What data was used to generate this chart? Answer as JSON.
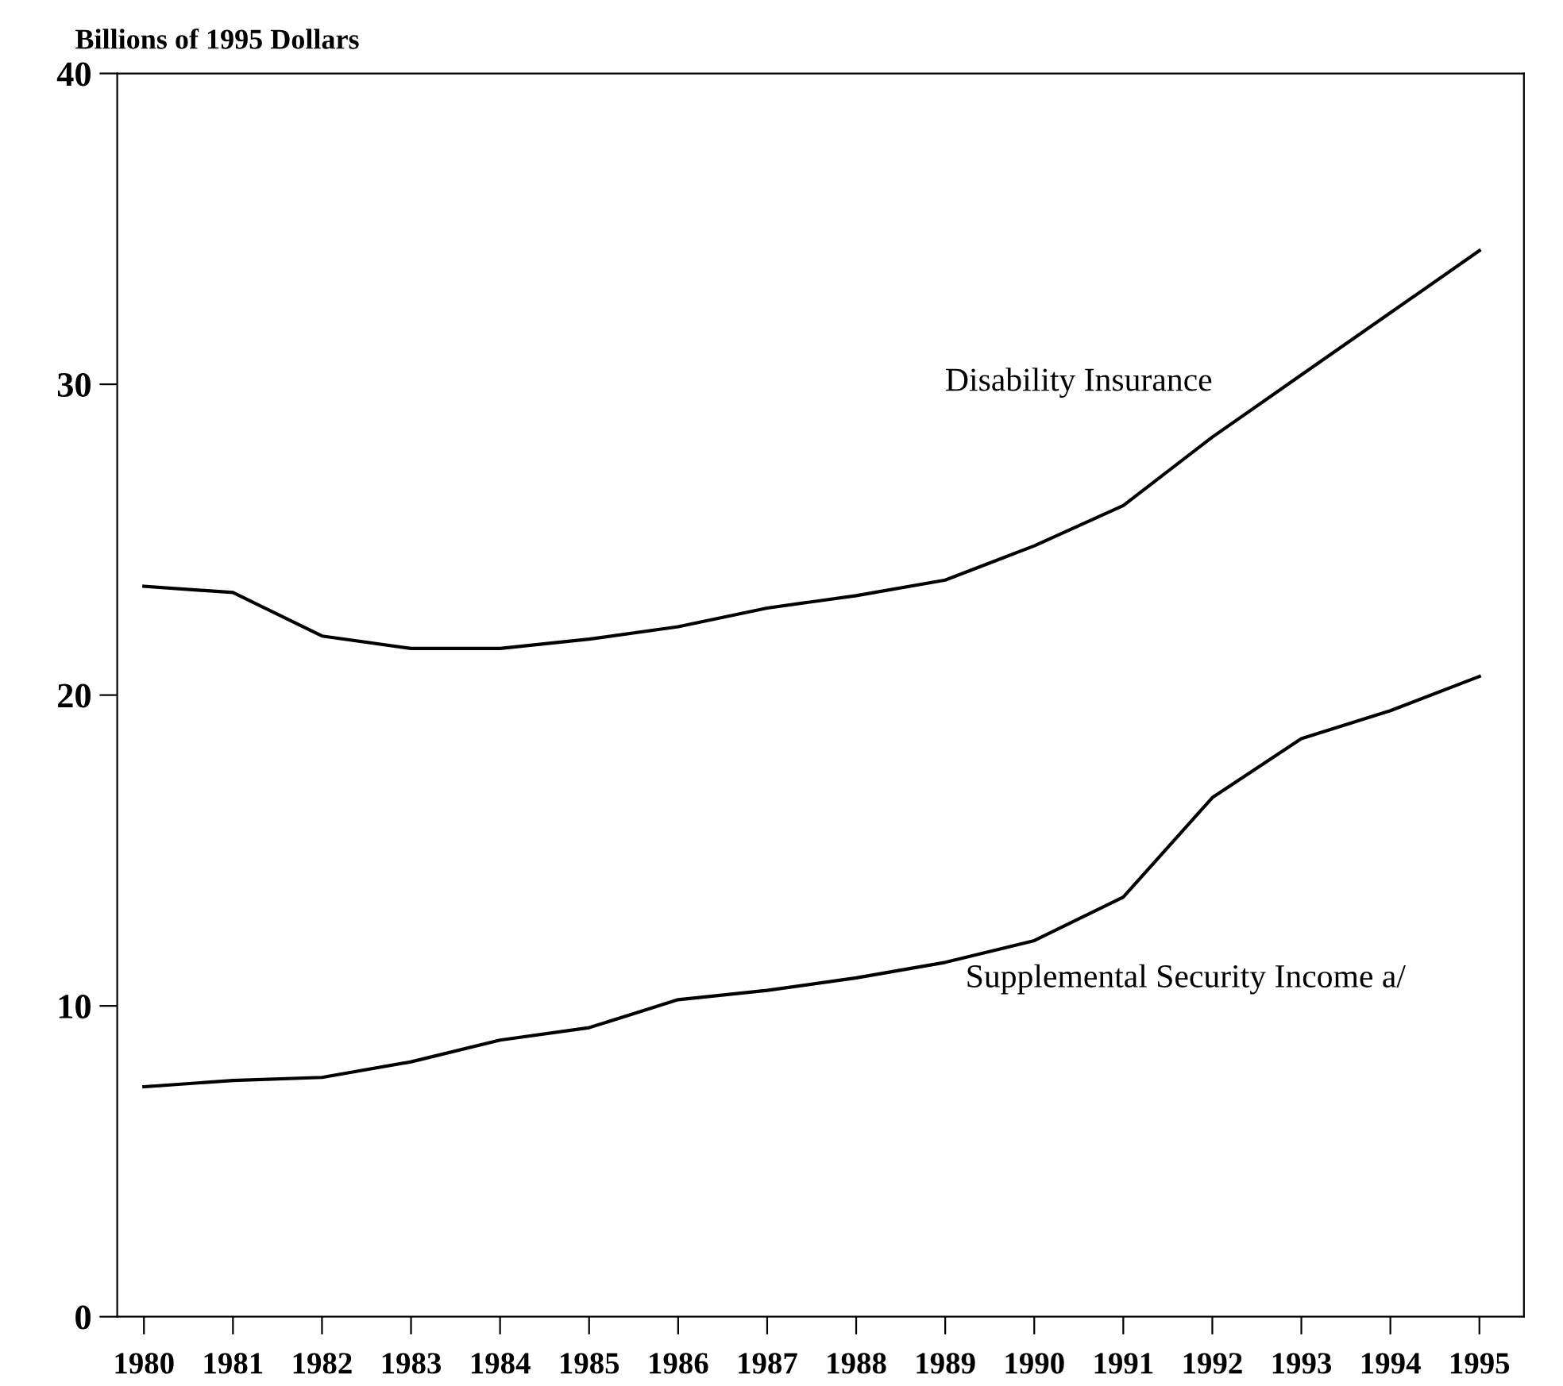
{
  "chart_data": {
    "type": "line",
    "ylabel": "Billions of 1995 Dollars",
    "x": [
      1980,
      1981,
      1982,
      1983,
      1984,
      1985,
      1986,
      1987,
      1988,
      1989,
      1990,
      1991,
      1992,
      1993,
      1994,
      1995
    ],
    "series": [
      {
        "name": "Disability Insurance",
        "color": "#000000",
        "values": [
          23.5,
          23.3,
          21.9,
          21.5,
          21.5,
          21.8,
          22.2,
          22.8,
          23.2,
          23.7,
          24.8,
          26.1,
          28.3,
          30.3,
          32.3,
          34.3
        ]
      },
      {
        "name": "Supplemental Security Income a/",
        "color": "#000000",
        "values": [
          7.4,
          7.6,
          7.7,
          8.2,
          8.9,
          9.3,
          10.2,
          10.5,
          10.9,
          11.4,
          12.1,
          13.5,
          16.7,
          18.6,
          19.5,
          20.6
        ]
      }
    ],
    "xlim": [
      1979.7,
      1995.5
    ],
    "xticks": [
      1980,
      1981,
      1982,
      1983,
      1984,
      1985,
      1986,
      1987,
      1988,
      1989,
      1990,
      1991,
      1992,
      1993,
      1994,
      1995
    ],
    "ylim": [
      0,
      40
    ],
    "yticks": [
      0,
      10,
      20,
      30,
      40
    ],
    "grid": false,
    "legend": false,
    "marker": "none",
    "line_style": "solid"
  }
}
